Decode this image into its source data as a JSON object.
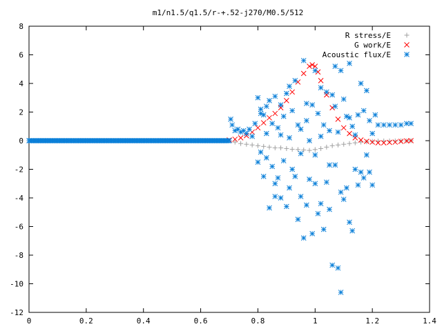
{
  "chart_data": {
    "type": "scatter",
    "title": "m1/n1.5/q1.5/r-+.52-j270/M0.5/512",
    "xlabel": "",
    "ylabel": "",
    "xlim": [
      0,
      1.4
    ],
    "ylim": [
      -12,
      8
    ],
    "x_ticks": [
      0,
      0.2,
      0.4,
      0.6,
      0.8,
      1,
      1.2,
      1.4
    ],
    "x_tick_labels": [
      "0",
      "0.2",
      "0.4",
      "0.6",
      "0.8",
      "1",
      "1.2",
      "1.4"
    ],
    "y_ticks": [
      -12,
      -10,
      -8,
      -6,
      -4,
      -2,
      0,
      2,
      4,
      6,
      8
    ],
    "y_tick_labels": [
      "-12",
      "-10",
      "-8",
      "-6",
      "-4",
      "-2",
      "0",
      "2",
      "4",
      "6",
      "8"
    ],
    "grid": false,
    "legend_position": "top-right",
    "series": [
      {
        "name": "R stress/E",
        "marker": "plus",
        "color": "#a0a0a0",
        "x": [
          0.0,
          0.1,
          0.2,
          0.3,
          0.4,
          0.5,
          0.6,
          0.7,
          0.72,
          0.74,
          0.76,
          0.78,
          0.8,
          0.82,
          0.84,
          0.86,
          0.88,
          0.9,
          0.92,
          0.94,
          0.96,
          0.98,
          1.0,
          1.02,
          1.04,
          1.06,
          1.08,
          1.1,
          1.12,
          1.14,
          1.16,
          1.18,
          1.2,
          1.22,
          1.24,
          1.26,
          1.28,
          1.3,
          1.32,
          1.335
        ],
        "y": [
          0,
          0,
          0,
          0,
          0,
          0,
          0,
          0,
          -0.1,
          -0.2,
          -0.25,
          -0.3,
          -0.35,
          -0.4,
          -0.45,
          -0.5,
          -0.5,
          -0.55,
          -0.6,
          -0.62,
          -0.65,
          -0.68,
          -0.62,
          -0.55,
          -0.45,
          -0.35,
          -0.3,
          -0.25,
          -0.2,
          -0.15,
          -0.1,
          -0.08,
          -0.05,
          -0.03,
          -0.02,
          -0.02,
          -0.02,
          -0.01,
          -0.01,
          0
        ]
      },
      {
        "name": "G work/E",
        "marker": "cross",
        "color": "#ff0000",
        "x": [
          0.7,
          0.72,
          0.74,
          0.76,
          0.78,
          0.8,
          0.82,
          0.84,
          0.86,
          0.88,
          0.9,
          0.92,
          0.94,
          0.96,
          0.98,
          0.99,
          1.0,
          1.01,
          1.02,
          1.04,
          1.06,
          1.08,
          1.1,
          1.12,
          1.14,
          1.16,
          1.18,
          1.2,
          1.22,
          1.24,
          1.26,
          1.28,
          1.3,
          1.32,
          1.335
        ],
        "y": [
          0.05,
          0.1,
          0.2,
          0.35,
          0.6,
          0.9,
          1.25,
          1.6,
          1.9,
          2.3,
          2.8,
          3.4,
          4.1,
          4.7,
          5.2,
          5.3,
          5.2,
          4.8,
          4.2,
          3.2,
          2.3,
          1.5,
          0.9,
          0.5,
          0.2,
          0.05,
          -0.05,
          -0.1,
          -0.15,
          -0.15,
          -0.12,
          -0.1,
          -0.05,
          -0.02,
          0
        ]
      },
      {
        "name": "Acoustic flux/E",
        "marker": "star",
        "color": "#0a7fd8",
        "x": [
          0.0,
          0.1,
          0.2,
          0.3,
          0.4,
          0.5,
          0.6,
          0.7,
          0.705,
          0.71,
          0.72,
          0.73,
          0.74,
          0.75,
          0.76,
          0.77,
          0.78,
          0.79,
          0.8,
          0.8,
          0.81,
          0.81,
          0.82,
          0.82,
          0.83,
          0.83,
          0.84,
          0.84,
          0.85,
          0.85,
          0.86,
          0.86,
          0.87,
          0.87,
          0.88,
          0.88,
          0.89,
          0.89,
          0.9,
          0.9,
          0.91,
          0.91,
          0.92,
          0.92,
          0.93,
          0.93,
          0.94,
          0.94,
          0.95,
          0.95,
          0.96,
          0.96,
          0.97,
          0.97,
          0.98,
          0.98,
          0.99,
          0.99,
          1.0,
          1.0,
          1.01,
          1.01,
          1.02,
          1.02,
          1.03,
          1.03,
          1.04,
          1.04,
          1.05,
          1.05,
          1.06,
          1.06,
          1.07,
          1.07,
          1.08,
          1.08,
          1.09,
          1.09,
          1.1,
          1.1,
          1.11,
          1.11,
          1.12,
          1.12,
          1.13,
          1.13,
          1.14,
          1.14,
          1.15,
          1.15,
          1.16,
          1.16,
          1.17,
          1.17,
          1.18,
          1.18,
          1.19,
          1.19,
          1.2,
          1.2,
          1.21,
          1.22,
          1.24,
          1.26,
          1.28,
          1.3,
          1.32,
          1.335,
          0.81,
          0.83,
          0.86,
          0.88,
          0.91,
          0.95,
          0.97,
          1.0,
          1.02,
          1.05,
          1.07,
          1.09,
          1.12
        ],
        "y": [
          0,
          0,
          0,
          0,
          0,
          0,
          0,
          0,
          1.5,
          1.1,
          0.7,
          0.8,
          0.6,
          0.7,
          0.5,
          0.8,
          0.3,
          1.2,
          3.0,
          -1.5,
          2.2,
          -0.8,
          1.8,
          -2.5,
          0.5,
          -1.2,
          2.8,
          -4.7,
          1.2,
          -1.8,
          3.1,
          -3.9,
          0.9,
          -2.6,
          2.5,
          -4.0,
          1.7,
          -1.4,
          3.3,
          -4.6,
          0.2,
          -3.3,
          2.1,
          -2.0,
          4.2,
          -2.5,
          1.1,
          -5.5,
          0.8,
          -3.9,
          5.6,
          -6.8,
          1.4,
          -4.5,
          0.0,
          -2.7,
          2.5,
          -6.5,
          4.9,
          -3.0,
          1.9,
          -5.1,
          0.3,
          -4.4,
          1.1,
          -6.2,
          3.4,
          -2.9,
          0.7,
          -4.8,
          3.2,
          -8.7,
          5.2,
          -1.7,
          0.6,
          -8.9,
          4.9,
          -10.6,
          2.9,
          -4.1,
          1.7,
          -3.3,
          5.4,
          -5.7,
          1.0,
          -6.3,
          0.4,
          -2.0,
          1.8,
          -3.1,
          4.0,
          -2.2,
          2.1,
          -2.6,
          3.5,
          -1.0,
          1.4,
          -2.2,
          0.5,
          -3.1,
          1.8,
          1.1,
          1.1,
          1.1,
          1.1,
          1.1,
          1.2,
          1.2,
          1.9,
          2.4,
          -3.0,
          0.4,
          3.8,
          -0.9,
          2.6,
          -1.0,
          3.7,
          -1.7,
          2.4,
          -3.6,
          1.6
        ]
      }
    ]
  }
}
